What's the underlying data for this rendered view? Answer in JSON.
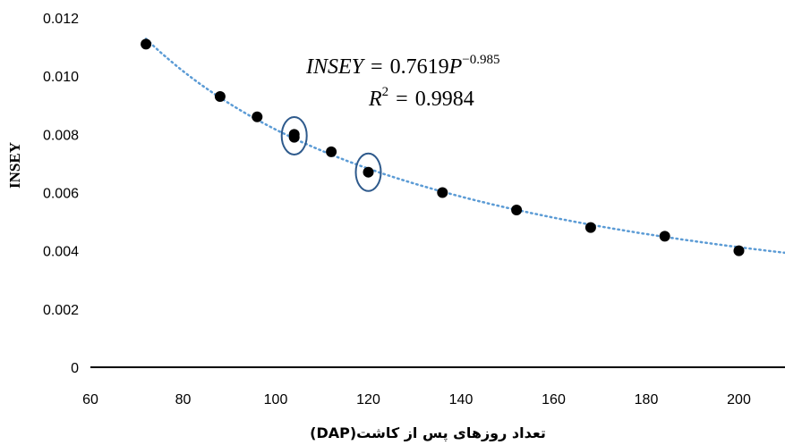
{
  "chart_data": {
    "type": "scatter",
    "ylabel": "INSEY",
    "xlabel": "تعداد روزهای پس از کاشت(DAP)",
    "xlim": [
      60,
      210
    ],
    "ylim": [
      0,
      0.012
    ],
    "x_ticks": [
      "60",
      "80",
      "100",
      "120",
      "140",
      "160",
      "180",
      "200"
    ],
    "y_ticks": [
      "0",
      "0.002",
      "0.004",
      "0.006",
      "0.008",
      "0.010",
      "0.012"
    ],
    "grid": false,
    "series": [
      {
        "points": [
          {
            "x": 72,
            "y": 0.0111
          },
          {
            "x": 88,
            "y": 0.0093
          },
          {
            "x": 96,
            "y": 0.0086
          },
          {
            "x": 104,
            "y": 0.008
          },
          {
            "x": 104,
            "y": 0.0079
          },
          {
            "x": 112,
            "y": 0.0074
          },
          {
            "x": 120,
            "y": 0.0067
          },
          {
            "x": 136,
            "y": 0.006
          },
          {
            "x": 152,
            "y": 0.0054
          },
          {
            "x": 168,
            "y": 0.0048
          },
          {
            "x": 184,
            "y": 0.0045
          },
          {
            "x": 200,
            "y": 0.004
          }
        ]
      }
    ],
    "trendline": {
      "type": "power",
      "a": 0.7619,
      "b": -0.985,
      "x_range": [
        72,
        210
      ],
      "color": "#5b9bd5",
      "style": "dotted"
    },
    "equation": {
      "lhs": "INSEY",
      "eq": "=",
      "coef": "0.7619",
      "var": "P",
      "exp": "−0.985",
      "r2_lhs": "R",
      "r2_exp": "2",
      "r2_val": "0.9984"
    },
    "highlights": [
      {
        "x": 104,
        "y": 0.00795
      },
      {
        "x": 120,
        "y": 0.0067
      }
    ],
    "colors": {
      "points": "#000000",
      "highlight": "#2e5a8c",
      "trend": "#5b9bd5",
      "axis": "#000000"
    }
  }
}
